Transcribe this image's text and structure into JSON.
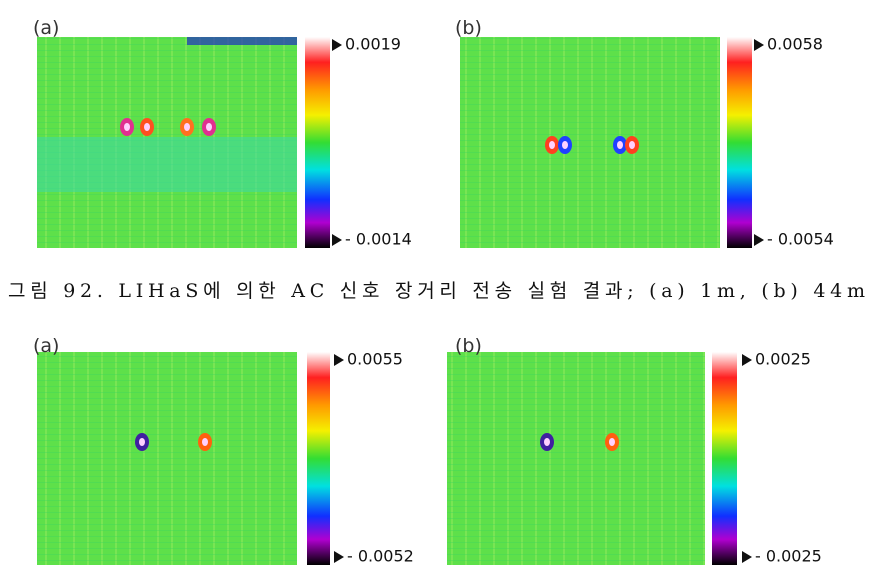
{
  "figures": [
    {
      "panels": [
        {
          "label": "(a)",
          "max": "0.0019",
          "min": "- 0.0014"
        },
        {
          "label": "(b)",
          "max": "0.0058",
          "min": "- 0.0054"
        }
      ],
      "caption": "그림 92. LIHaS에 의한 AC 신호 장거리 전송 실험 결과; (a) 1m, (b) 44m"
    },
    {
      "panels": [
        {
          "label": "(a)",
          "max": "0.0055",
          "min": "- 0.0052"
        },
        {
          "label": "(b)",
          "max": "0.0025",
          "min": "- 0.0025"
        }
      ]
    }
  ]
}
